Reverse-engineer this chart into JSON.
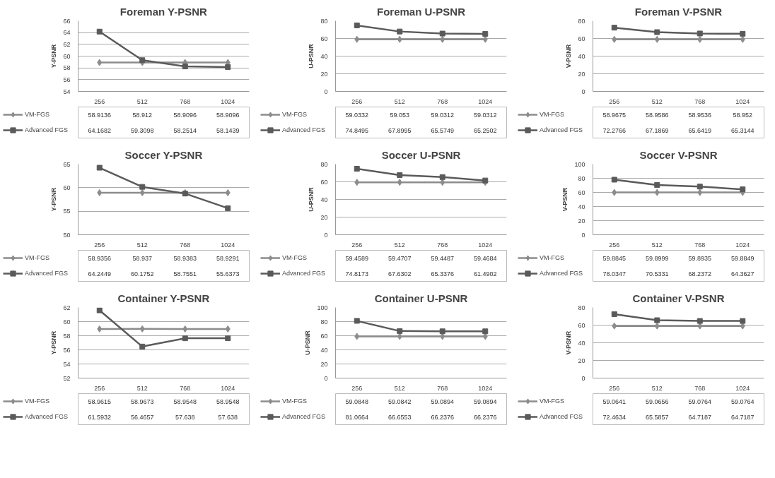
{
  "chart_data": [
    {
      "type": "line",
      "title": "Foreman Y-PSNR",
      "ylabel": "Y-PSNR",
      "categories": [
        "256",
        "512",
        "768",
        "1024"
      ],
      "ylim": [
        54,
        66
      ],
      "yticks": [
        54,
        56,
        58,
        60,
        62,
        64,
        66
      ],
      "grid": "y",
      "legend": "left",
      "data_labels": true,
      "series": [
        {
          "name": "VM-FGS",
          "color": "#8c8c8c",
          "marker": "diamond",
          "values": [
            58.9136,
            58.912,
            58.9096,
            58.9096
          ]
        },
        {
          "name": "Advanced FGS",
          "color": "#5a5a5a",
          "marker": "square",
          "values": [
            64.1682,
            59.3098,
            58.2514,
            58.1439
          ]
        }
      ]
    },
    {
      "type": "line",
      "title": "Foreman U-PSNR",
      "ylabel": "U-PSNR",
      "categories": [
        "256",
        "512",
        "768",
        "1024"
      ],
      "ylim": [
        0,
        80
      ],
      "yticks": [
        0,
        20,
        40,
        60,
        80
      ],
      "grid": "y",
      "legend": "left",
      "data_labels": true,
      "series": [
        {
          "name": "VM-FGS",
          "color": "#8c8c8c",
          "marker": "diamond",
          "values": [
            59.0332,
            59.053,
            59.0312,
            59.0312
          ]
        },
        {
          "name": "Advanced FGS",
          "color": "#5a5a5a",
          "marker": "square",
          "values": [
            74.8495,
            67.8995,
            65.5749,
            65.2502
          ]
        }
      ]
    },
    {
      "type": "line",
      "title": "Foreman V-PSNR",
      "ylabel": "V-PSNR",
      "categories": [
        "256",
        "512",
        "768",
        "1024"
      ],
      "ylim": [
        0,
        80
      ],
      "yticks": [
        0,
        20,
        40,
        60,
        80
      ],
      "grid": "y",
      "legend": "left",
      "data_labels": true,
      "series": [
        {
          "name": "VM-FGS",
          "color": "#8c8c8c",
          "marker": "diamond",
          "values": [
            58.9675,
            58.9586,
            58.9536,
            58.952
          ]
        },
        {
          "name": "Advanced FGS",
          "color": "#5a5a5a",
          "marker": "square",
          "values": [
            72.2766,
            67.1869,
            65.6419,
            65.3144
          ]
        }
      ]
    },
    {
      "type": "line",
      "title": "Soccer Y-PSNR",
      "ylabel": "Y-PSNR",
      "categories": [
        "256",
        "512",
        "768",
        "1024"
      ],
      "ylim": [
        50,
        65
      ],
      "yticks": [
        50,
        55,
        60,
        65
      ],
      "grid": "y",
      "legend": "left",
      "data_labels": true,
      "series": [
        {
          "name": "VM-FGS",
          "color": "#8c8c8c",
          "marker": "diamond",
          "values": [
            58.9356,
            58.937,
            58.9383,
            58.9291
          ]
        },
        {
          "name": "Advanced FGS",
          "color": "#5a5a5a",
          "marker": "square",
          "values": [
            64.2449,
            60.1752,
            58.7551,
            55.6373
          ]
        }
      ]
    },
    {
      "type": "line",
      "title": "Soccer U-PSNR",
      "ylabel": "U-PSNR",
      "categories": [
        "256",
        "512",
        "768",
        "1024"
      ],
      "ylim": [
        0,
        80
      ],
      "yticks": [
        0,
        20,
        40,
        60,
        80
      ],
      "grid": "y",
      "legend": "left",
      "data_labels": true,
      "series": [
        {
          "name": "VM-FGS",
          "color": "#8c8c8c",
          "marker": "diamond",
          "values": [
            59.4589,
            59.4707,
            59.4487,
            59.4684
          ]
        },
        {
          "name": "Advanced FGS",
          "color": "#5a5a5a",
          "marker": "square",
          "values": [
            74.8173,
            67.6302,
            65.3376,
            61.4902
          ]
        }
      ]
    },
    {
      "type": "line",
      "title": "Soccer V-PSNR",
      "ylabel": "V-PSNR",
      "categories": [
        "256",
        "512",
        "768",
        "1024"
      ],
      "ylim": [
        0,
        100
      ],
      "yticks": [
        0,
        20,
        40,
        60,
        80,
        100
      ],
      "grid": "y",
      "legend": "left",
      "data_labels": true,
      "series": [
        {
          "name": "VM-FGS",
          "color": "#8c8c8c",
          "marker": "diamond",
          "values": [
            59.8845,
            59.8999,
            59.8935,
            59.8849
          ]
        },
        {
          "name": "Advanced FGS",
          "color": "#5a5a5a",
          "marker": "square",
          "values": [
            78.0347,
            70.5331,
            68.2372,
            64.3627
          ]
        }
      ]
    },
    {
      "type": "line",
      "title": "Container Y-PSNR",
      "ylabel": "Y-PSNR",
      "categories": [
        "256",
        "512",
        "768",
        "1024"
      ],
      "ylim": [
        52,
        62
      ],
      "yticks": [
        52,
        54,
        56,
        58,
        60,
        62
      ],
      "grid": "y",
      "legend": "left",
      "data_labels": true,
      "series": [
        {
          "name": "VM-FGS",
          "color": "#8c8c8c",
          "marker": "diamond",
          "values": [
            58.9615,
            58.9673,
            58.9548,
            58.9548
          ]
        },
        {
          "name": "Advanced FGS",
          "color": "#5a5a5a",
          "marker": "square",
          "values": [
            61.5932,
            56.4657,
            57.638,
            57.638
          ]
        }
      ]
    },
    {
      "type": "line",
      "title": "Container U-PSNR",
      "ylabel": "U-PSNR",
      "categories": [
        "256",
        "512",
        "768",
        "1024"
      ],
      "ylim": [
        0,
        100
      ],
      "yticks": [
        0,
        20,
        40,
        60,
        80,
        100
      ],
      "grid": "y",
      "legend": "left",
      "data_labels": true,
      "series": [
        {
          "name": "VM-FGS",
          "color": "#8c8c8c",
          "marker": "diamond",
          "values": [
            59.0848,
            59.0842,
            59.0894,
            59.0894
          ]
        },
        {
          "name": "Advanced FGS",
          "color": "#5a5a5a",
          "marker": "square",
          "values": [
            81.0664,
            66.6553,
            66.2376,
            66.2376
          ]
        }
      ]
    },
    {
      "type": "line",
      "title": "Container V-PSNR",
      "ylabel": "V-PSNR",
      "categories": [
        "256",
        "512",
        "768",
        "1024"
      ],
      "ylim": [
        0,
        80
      ],
      "yticks": [
        0,
        20,
        40,
        60,
        80
      ],
      "grid": "y",
      "legend": "left",
      "data_labels": true,
      "series": [
        {
          "name": "VM-FGS",
          "color": "#8c8c8c",
          "marker": "diamond",
          "values": [
            59.0641,
            59.0656,
            59.0764,
            59.0764
          ]
        },
        {
          "name": "Advanced FGS",
          "color": "#5a5a5a",
          "marker": "square",
          "values": [
            72.4634,
            65.5857,
            64.7187,
            64.7187
          ]
        }
      ]
    }
  ]
}
